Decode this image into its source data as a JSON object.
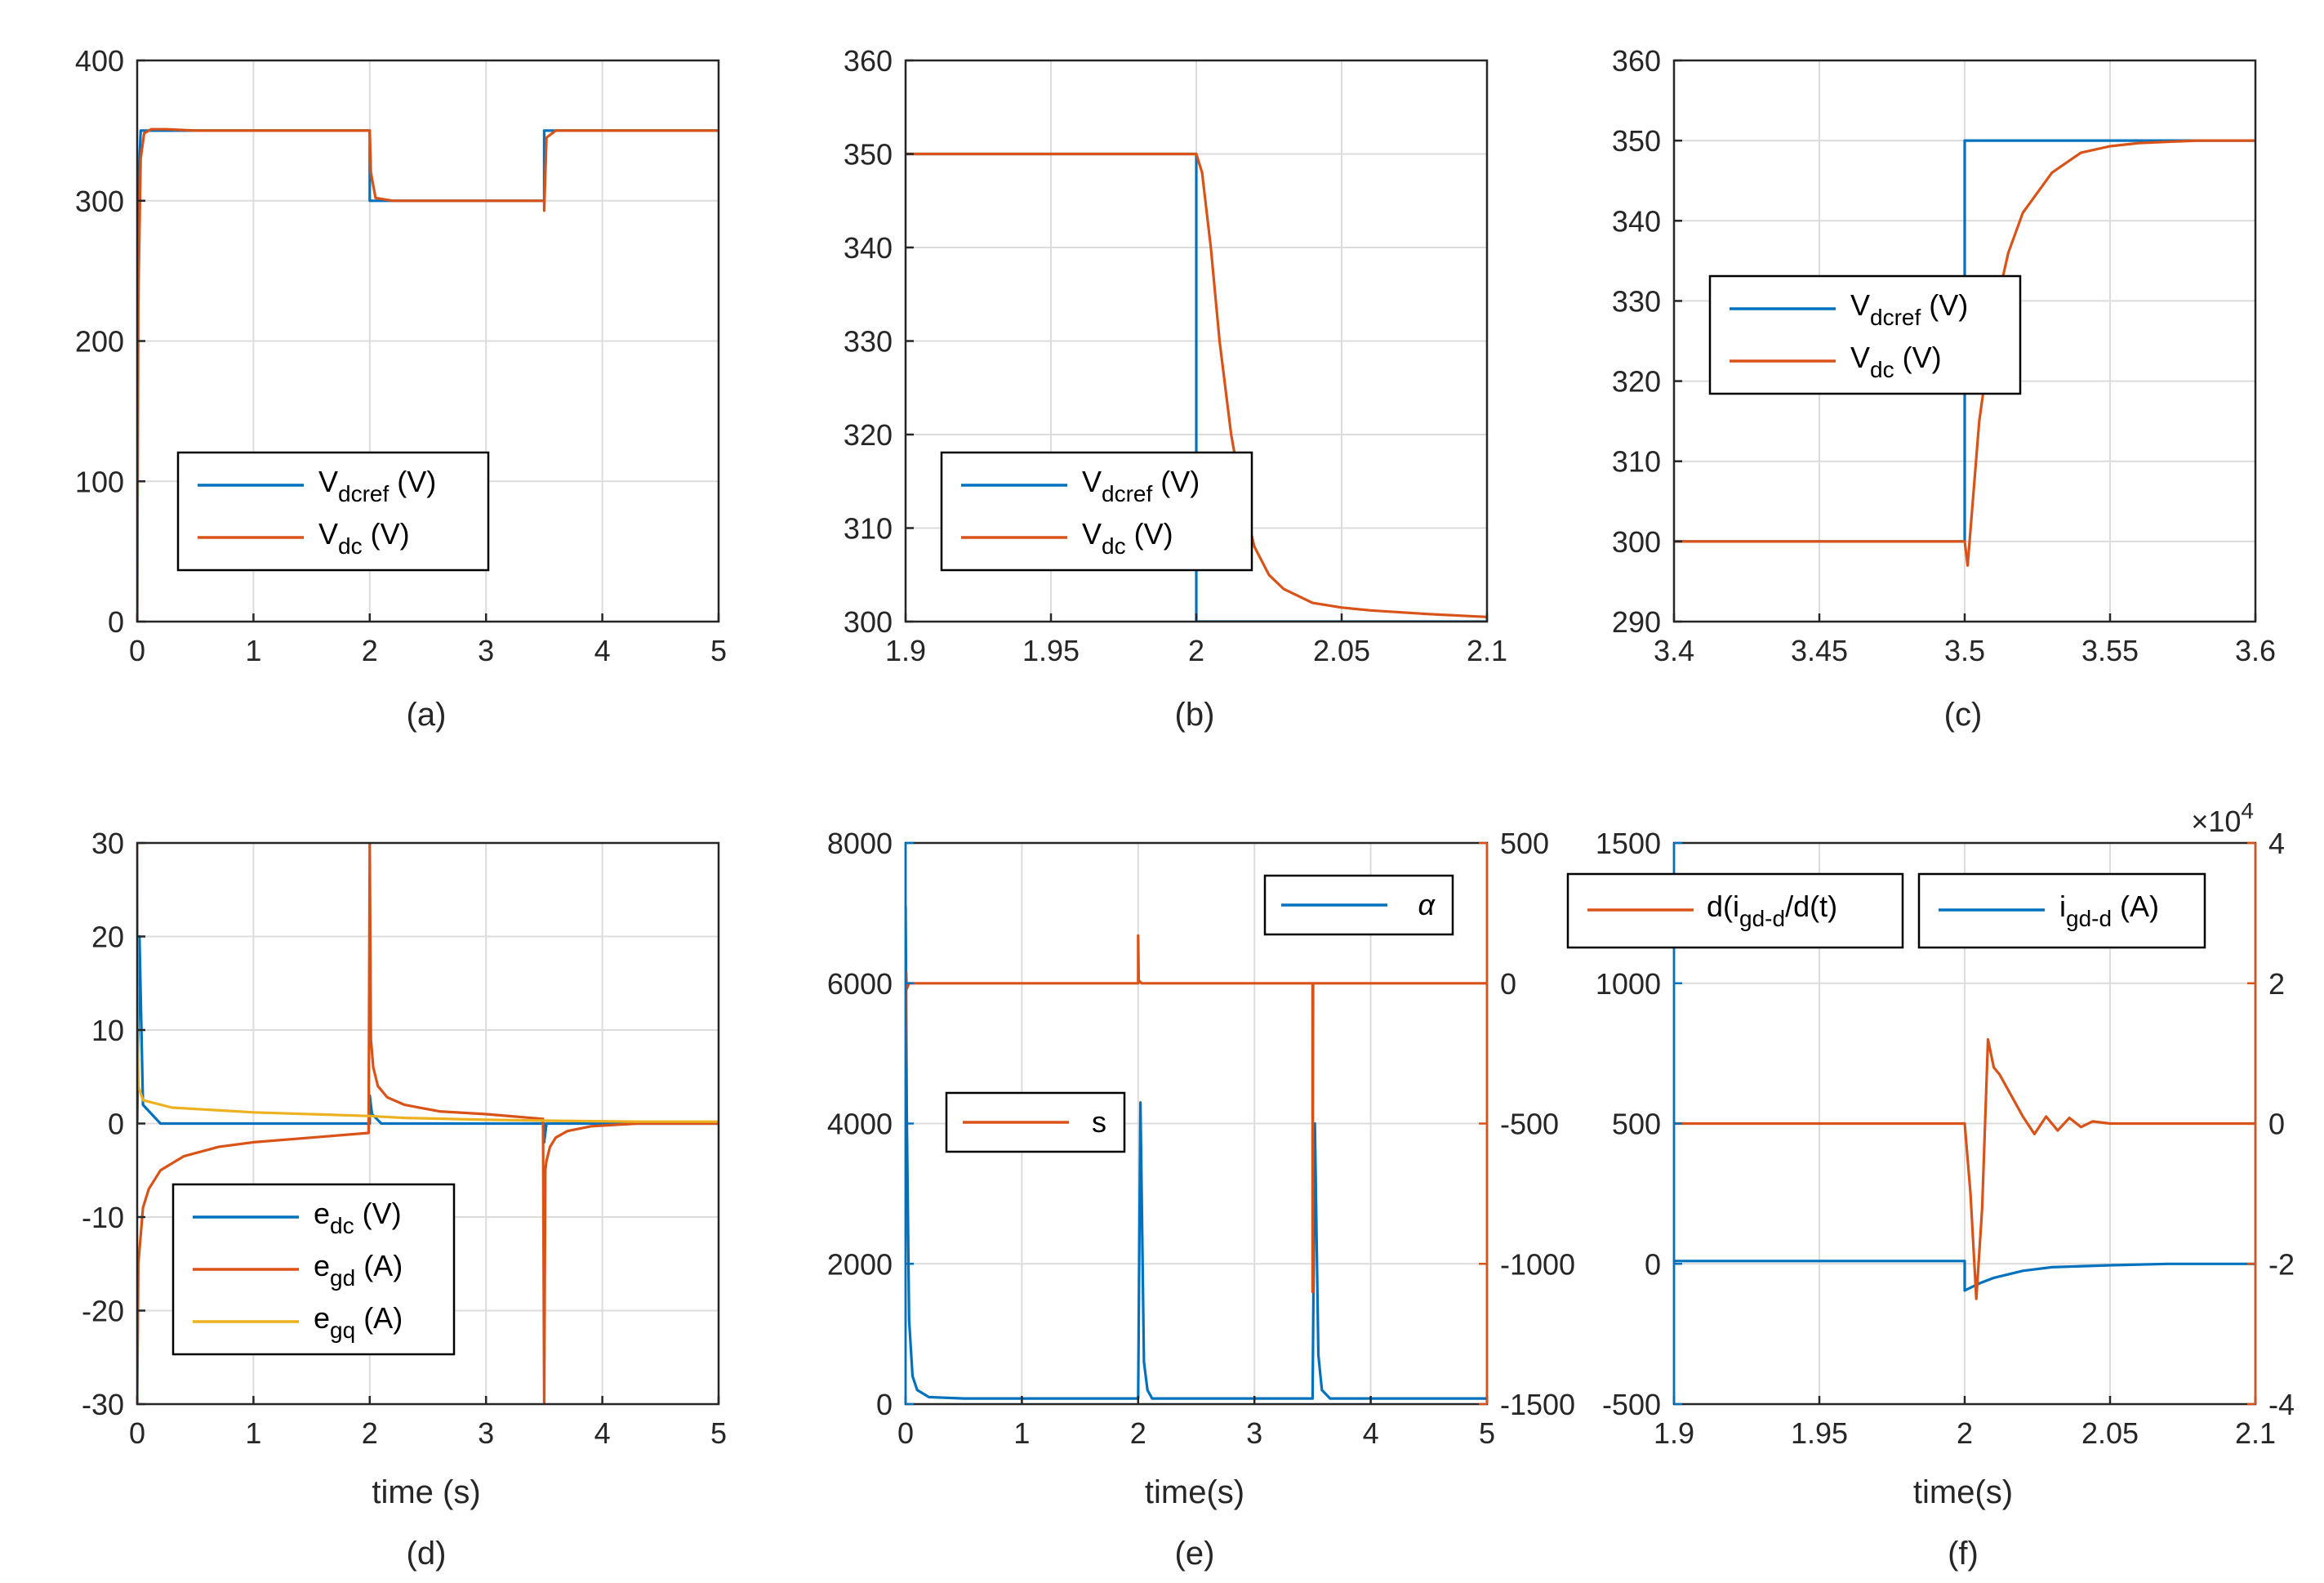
{
  "colors": {
    "blue": "#0072BD",
    "orange": "#D95319",
    "yellow": "#EDB120",
    "axis": "#262626",
    "grid": "#dcdcdc"
  },
  "chart_data": [
    {
      "id": "a",
      "type": "line",
      "caption": "(a)",
      "xlabel": "",
      "ylabel": "",
      "xlim": [
        0,
        5
      ],
      "ylim": [
        0,
        400
      ],
      "xticks": [
        0,
        1,
        2,
        3,
        4,
        5
      ],
      "yticks": [
        0,
        100,
        200,
        300,
        400
      ],
      "xtick_labels": [
        "0",
        "1",
        "2",
        "3",
        "4",
        "5"
      ],
      "ytick_labels": [
        "0",
        "100",
        "200",
        "300",
        "400"
      ],
      "legend": [
        {
          "base": "V",
          "sub": "dcref",
          "suffix": " (V)",
          "color": "blue"
        },
        {
          "base": "V",
          "sub": "dc",
          "suffix": " (V)",
          "color": "orange"
        }
      ],
      "series": [
        {
          "name": "V_dcref (V)",
          "color": "blue",
          "x": [
            0,
            0.005,
            0.03,
            2.0,
            2.0,
            3.5,
            3.5,
            5
          ],
          "y": [
            0,
            300,
            350,
            350,
            300,
            300,
            350,
            350
          ]
        },
        {
          "name": "V_dc (V)",
          "color": "orange",
          "x": [
            0,
            0.01,
            0.03,
            0.06,
            0.12,
            0.25,
            0.5,
            2.0,
            2.01,
            2.05,
            2.2,
            2.4,
            3.5,
            3.5,
            3.52,
            3.6,
            5
          ],
          "y": [
            0,
            230,
            330,
            348,
            351,
            351,
            350,
            350,
            320,
            302,
            300,
            300,
            300,
            293,
            345,
            350,
            350
          ]
        }
      ]
    },
    {
      "id": "b",
      "type": "line",
      "caption": "(b)",
      "xlabel": "",
      "ylabel": "",
      "xlim": [
        1.9,
        2.1
      ],
      "ylim": [
        300,
        360
      ],
      "xticks": [
        1.9,
        1.95,
        2.0,
        2.05,
        2.1
      ],
      "yticks": [
        300,
        310,
        320,
        330,
        340,
        350,
        360
      ],
      "xtick_labels": [
        "1.9",
        "1.95",
        "2",
        "2.05",
        "2.1"
      ],
      "ytick_labels": [
        "300",
        "310",
        "320",
        "330",
        "340",
        "350",
        "360"
      ],
      "legend": [
        {
          "base": "V",
          "sub": "dcref",
          "suffix": " (V)",
          "color": "blue"
        },
        {
          "base": "V",
          "sub": "dc",
          "suffix": " (V)",
          "color": "orange"
        }
      ],
      "series": [
        {
          "name": "V_dcref (V)",
          "color": "blue",
          "x": [
            1.9,
            2.0,
            2.0,
            2.1
          ],
          "y": [
            350,
            350,
            300,
            300
          ]
        },
        {
          "name": "V_dc (V)",
          "color": "orange",
          "x": [
            1.9,
            2.0,
            2.002,
            2.005,
            2.008,
            2.012,
            2.016,
            2.02,
            2.025,
            2.03,
            2.04,
            2.05,
            2.06,
            2.08,
            2.1
          ],
          "y": [
            350,
            350,
            348,
            340,
            330,
            320,
            313,
            308,
            305,
            303.5,
            302,
            301.5,
            301.2,
            300.8,
            300.5
          ]
        }
      ]
    },
    {
      "id": "c",
      "type": "line",
      "caption": "(c)",
      "xlabel": "",
      "ylabel": "",
      "xlim": [
        3.4,
        3.6
      ],
      "ylim": [
        290,
        360
      ],
      "xticks": [
        3.4,
        3.45,
        3.5,
        3.55,
        3.6
      ],
      "yticks": [
        290,
        300,
        310,
        320,
        330,
        340,
        350,
        360
      ],
      "xtick_labels": [
        "3.4",
        "3.45",
        "3.5",
        "3.55",
        "3.6"
      ],
      "ytick_labels": [
        "290",
        "300",
        "310",
        "320",
        "330",
        "340",
        "350",
        "360"
      ],
      "legend": [
        {
          "base": "V",
          "sub": "dcref",
          "suffix": " (V)",
          "color": "blue"
        },
        {
          "base": "V",
          "sub": "dc",
          "suffix": " (V)",
          "color": "orange"
        }
      ],
      "series": [
        {
          "name": "V_dcref (V)",
          "color": "blue",
          "x": [
            3.4,
            3.5,
            3.5,
            3.6
          ],
          "y": [
            300,
            300,
            350,
            350
          ]
        },
        {
          "name": "V_dc (V)",
          "color": "orange",
          "x": [
            3.4,
            3.5,
            3.501,
            3.505,
            3.51,
            3.515,
            3.52,
            3.53,
            3.54,
            3.55,
            3.56,
            3.58,
            3.6
          ],
          "y": [
            300,
            300,
            297,
            315,
            328,
            336,
            341,
            346,
            348.5,
            349.3,
            349.7,
            350,
            350
          ]
        }
      ]
    },
    {
      "id": "d",
      "type": "line",
      "caption": "(d)",
      "xlabel": "time (s)",
      "ylabel": "",
      "xlim": [
        0,
        5
      ],
      "ylim": [
        -30,
        30
      ],
      "xticks": [
        0,
        1,
        2,
        3,
        4,
        5
      ],
      "yticks": [
        -30,
        -20,
        -10,
        0,
        10,
        20,
        30
      ],
      "xtick_labels": [
        "0",
        "1",
        "2",
        "3",
        "4",
        "5"
      ],
      "ytick_labels": [
        "-30",
        "-20",
        "-10",
        "0",
        "10",
        "20",
        "30"
      ],
      "legend": [
        {
          "base": "e",
          "sub": "dc",
          "suffix": " (V)",
          "color": "blue"
        },
        {
          "base": "e",
          "sub": "gd",
          "suffix": " (A)",
          "color": "orange"
        },
        {
          "base": "e",
          "sub": "gq",
          "suffix": " (A)",
          "color": "yellow"
        }
      ],
      "series": [
        {
          "name": "e_dc (V)",
          "color": "blue",
          "x": [
            0,
            0.02,
            0.05,
            0.2,
            2.0,
            2.0,
            2.02,
            2.1,
            3.5,
            3.5,
            3.52,
            3.6,
            5
          ],
          "y": [
            0,
            20,
            2,
            0,
            0,
            3,
            1,
            0,
            0,
            -2,
            0,
            0,
            0
          ]
        },
        {
          "name": "e_gd (A)",
          "color": "orange",
          "x": [
            0,
            0.01,
            0.05,
            0.1,
            0.2,
            0.4,
            0.7,
            1.0,
            1.5,
            1.99,
            2.0,
            2.01,
            2.03,
            2.07,
            2.15,
            2.3,
            2.6,
            3.0,
            3.49,
            3.5,
            3.51,
            3.52,
            3.55,
            3.6,
            3.7,
            3.9,
            4.3,
            5
          ],
          "y": [
            -30,
            -15,
            -9,
            -7,
            -5,
            -3.5,
            -2.5,
            -2,
            -1.5,
            -1,
            30,
            9,
            6,
            4,
            2.8,
            2,
            1.3,
            1,
            0.5,
            -30,
            -5,
            -4,
            -2.5,
            -1.5,
            -0.8,
            -0.3,
            0,
            0
          ]
        },
        {
          "name": "e_gq (A)",
          "color": "yellow",
          "x": [
            0,
            0.003,
            0.01,
            0.05,
            0.3,
            1.0,
            2.0,
            2.3,
            3.0,
            3.6,
            4.3,
            5
          ],
          "y": [
            30,
            12,
            4,
            2.5,
            1.7,
            1.2,
            0.8,
            0.6,
            0.4,
            0.3,
            0.2,
            0.2
          ]
        }
      ]
    },
    {
      "id": "e",
      "type": "line",
      "caption": "(e)",
      "xlabel": "time(s)",
      "ylabel": "",
      "xlim": [
        0,
        5
      ],
      "ylim": [
        0,
        8000
      ],
      "y2lim": [
        -1500,
        500
      ],
      "xticks": [
        0,
        1,
        2,
        3,
        4,
        5
      ],
      "yticks": [
        0,
        2000,
        4000,
        6000,
        8000
      ],
      "y2ticks": [
        -1500,
        -1000,
        -500,
        0,
        500
      ],
      "xtick_labels": [
        "0",
        "1",
        "2",
        "3",
        "4",
        "5"
      ],
      "ytick_labels": [
        "0",
        "2000",
        "4000",
        "6000",
        "8000"
      ],
      "y2tick_labels": [
        "-1500",
        "-1000",
        "-500",
        "0",
        "500"
      ],
      "legend_top": {
        "label": "α",
        "color": "blue"
      },
      "legend_mid": {
        "label": "s",
        "color": "orange"
      },
      "series": [
        {
          "name": "α",
          "color": "blue",
          "axis": "left",
          "x": [
            0,
            0.01,
            0.03,
            0.06,
            0.1,
            0.2,
            0.5,
            1.9,
            2.0,
            2.02,
            2.05,
            2.08,
            2.12,
            2.5,
            3.4,
            3.5,
            3.52,
            3.55,
            3.58,
            3.65,
            4.0,
            5
          ],
          "y": [
            7100,
            4200,
            1200,
            400,
            200,
            100,
            80,
            80,
            80,
            4300,
            600,
            200,
            80,
            80,
            80,
            80,
            4000,
            700,
            200,
            80,
            80,
            80
          ]
        },
        {
          "name": "s",
          "color": "orange",
          "axis": "right",
          "x": [
            0,
            0.005,
            0.01,
            0.03,
            2.0,
            2.0,
            2.005,
            2.03,
            3.49,
            3.5,
            3.5,
            3.505,
            3.52,
            5
          ],
          "y": [
            -300,
            40,
            -20,
            0,
            0,
            170,
            10,
            0,
            0,
            0,
            -1100,
            0,
            0,
            0
          ]
        }
      ]
    },
    {
      "id": "f",
      "type": "line",
      "caption": "(f)",
      "xlabel": "time(s)",
      "ylabel": "",
      "xlim": [
        1.9,
        2.1
      ],
      "ylim": [
        -500,
        1500
      ],
      "y2lim": [
        -4,
        4
      ],
      "y2_multiplier": "×10",
      "y2_exponent": "4",
      "xticks": [
        1.9,
        1.95,
        2.0,
        2.05,
        2.1
      ],
      "yticks": [
        -500,
        0,
        500,
        1000,
        1500
      ],
      "y2ticks": [
        -4,
        -2,
        0,
        2,
        4
      ],
      "xtick_labels": [
        "1.9",
        "1.95",
        "2",
        "2.05",
        "2.1"
      ],
      "ytick_labels": [
        "-500",
        "0",
        "500",
        "1000",
        "1500"
      ],
      "y2tick_labels": [
        "-4",
        "-2",
        "0",
        "2",
        "4"
      ],
      "legend_left": {
        "text": "d(i",
        "sub": "gd-d",
        "suffix": "/d(t)",
        "color": "orange"
      },
      "legend_right": {
        "text": "i",
        "sub": "gd-d",
        "suffix": " (A)",
        "color": "blue"
      },
      "series": [
        {
          "name": "i_gd-d (A)",
          "color": "blue",
          "axis": "left",
          "x": [
            1.9,
            2.0,
            2.0,
            2.005,
            2.01,
            2.02,
            2.03,
            2.05,
            2.07,
            2.1
          ],
          "y": [
            10,
            10,
            -95,
            -70,
            -50,
            -25,
            -12,
            -5,
            0,
            0
          ]
        },
        {
          "name": "d(i_gd-d)/d(t)",
          "color": "orange",
          "axis": "right",
          "x": [
            1.9,
            2.0,
            2.002,
            2.004,
            2.006,
            2.008,
            2.01,
            2.012,
            2.016,
            2.02,
            2.024,
            2.028,
            2.032,
            2.036,
            2.04,
            2.044,
            2.05,
            2.06,
            2.1
          ],
          "y": [
            0,
            0,
            -1.0,
            -2.5,
            -1.2,
            1.2,
            0.8,
            0.7,
            0.4,
            0.1,
            -0.15,
            0.1,
            -0.1,
            0.08,
            -0.05,
            0.03,
            0,
            0,
            0
          ]
        }
      ]
    }
  ]
}
